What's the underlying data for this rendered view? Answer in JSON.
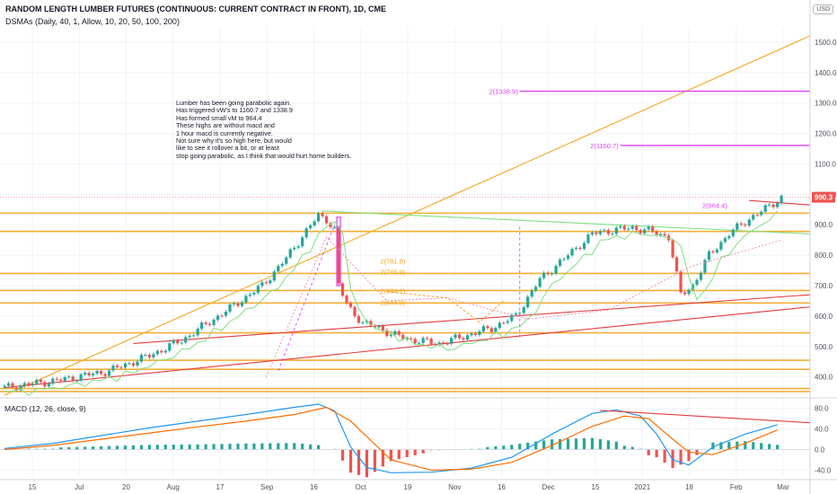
{
  "header": {
    "title": "RANDOM LENGTH LUMBER FUTURES (CONTINUOUS: CURRENT CONTRACT IN FRONT), 1D, CME",
    "subtitle": "DSMAs (Daily, 40, 1, Allow, 10, 20, 50, 100, 200)",
    "currency": "USD"
  },
  "note": "Lumber has been going parabolic again.\nHas triggered vW's to 1160.7 and 1338.9\nHas formed small vM to 964.4\nThese highs are without macd and\n1 hour macd is currently negative.\nNot sure why it's so high here, but would\nlike to see it rollover a bit, or at least\nstop going parabolic, as I think that would hurt home builders.",
  "macd_label": "MACD (12, 26, close, 9)",
  "colors": {
    "up": "#26a69a",
    "down": "#ef5350",
    "magenta": "#e040fb",
    "orange": "#f5a623",
    "green_line": "#7ee07e",
    "red_line": "#e23c3c",
    "macd": "#2196f3",
    "signal": "#ff6d00",
    "price_tag": "#ef5350"
  },
  "chart_data": [
    {
      "type": "candlestick",
      "title": "RANDOM LENGTH LUMBER FUTURES (CONTINUOUS: CURRENT CONTRACT IN FRONT), 1D, CME",
      "x_tick_labels": [
        "15",
        "Jul",
        "20",
        "Aug",
        "17",
        "Sep",
        "16",
        "Oct",
        "19",
        "Nov",
        "16",
        "Dec",
        "15",
        "2021",
        "18",
        "Feb",
        "Mar"
      ],
      "y_ticks": [
        400.0,
        500.0,
        600.0,
        700.0,
        800.0,
        900.0,
        1000.0,
        1100.0,
        1200.0,
        1300.0,
        1400.0,
        1500.0
      ],
      "ylim": [
        340,
        1550
      ],
      "last_price_label": "990.3",
      "close_path": [
        [
          0,
          365
        ],
        [
          14,
          390
        ],
        [
          26,
          420
        ],
        [
          36,
          470
        ],
        [
          44,
          520
        ],
        [
          56,
          625
        ],
        [
          64,
          700
        ],
        [
          70,
          790
        ],
        [
          75,
          880
        ],
        [
          78,
          930
        ],
        [
          80,
          918
        ],
        [
          82,
          885
        ],
        [
          83,
          700
        ],
        [
          85,
          640
        ],
        [
          89,
          575
        ],
        [
          93,
          563
        ],
        [
          96,
          540
        ],
        [
          102,
          520
        ],
        [
          108,
          510
        ],
        [
          112,
          525
        ],
        [
          117,
          545
        ],
        [
          121,
          560
        ],
        [
          127,
          600
        ],
        [
          133,
          720
        ],
        [
          140,
          800
        ],
        [
          146,
          870
        ],
        [
          150,
          880
        ],
        [
          156,
          890
        ],
        [
          160,
          880
        ],
        [
          165,
          860
        ],
        [
          168,
          670
        ],
        [
          171,
          700
        ],
        [
          175,
          800
        ],
        [
          180,
          870
        ],
        [
          185,
          920
        ],
        [
          190,
          960
        ],
        [
          193,
          990
        ]
      ],
      "annotations": [
        "2(1338.9)",
        "2(1160.7)",
        "2(964.4)",
        "2(781.8)",
        "2(745.9)",
        "2(684.1)",
        "2(644.8)"
      ],
      "levels": [
        {
          "label": "2(1338.9)",
          "value": 1338.9
        },
        {
          "label": "2(1160.7)",
          "value": 1160.7
        },
        {
          "label": "2(964.4)",
          "value": 964.4
        },
        {
          "label": "2(781.8)",
          "value": 781.8
        },
        {
          "label": "2(745.9)",
          "value": 745.9
        },
        {
          "label": "2(684.1)",
          "value": 684.1
        },
        {
          "label": "2(644.8)",
          "value": 644.8
        }
      ],
      "horizontal_lines": [
        938,
        878,
        740,
        684,
        643,
        545,
        455,
        425,
        362,
        352
      ],
      "trend_lines": [
        {
          "color": "#f5a623",
          "from": [
            0,
            340
          ],
          "to": [
            200,
            1520
          ]
        },
        {
          "color": "#7ee07e",
          "from": [
            79,
            945
          ],
          "to": [
            200,
            870
          ]
        },
        {
          "color": "#e23c3c",
          "from": [
            32,
            510
          ],
          "to": [
            200,
            670
          ]
        },
        {
          "color": "#e23c3c",
          "from": [
            0,
            365
          ],
          "to": [
            200,
            630
          ]
        },
        {
          "color": "#e23c3c",
          "from": [
            185,
            980
          ],
          "to": [
            200,
            965
          ]
        }
      ]
    },
    {
      "type": "macd",
      "title": "MACD (12, 26, close, 9)",
      "y_ticks": [
        80.0,
        40.0,
        0.0,
        -40.0
      ],
      "ylim": [
        -55,
        95
      ],
      "macd": [
        [
          0,
          2
        ],
        [
          12,
          12
        ],
        [
          24,
          27
        ],
        [
          36,
          42
        ],
        [
          48,
          55
        ],
        [
          60,
          68
        ],
        [
          72,
          82
        ],
        [
          78,
          88
        ],
        [
          82,
          75
        ],
        [
          86,
          5
        ],
        [
          90,
          -35
        ],
        [
          96,
          -45
        ],
        [
          106,
          -44
        ],
        [
          116,
          -36
        ],
        [
          126,
          -15
        ],
        [
          136,
          30
        ],
        [
          146,
          70
        ],
        [
          152,
          77
        ],
        [
          158,
          65
        ],
        [
          162,
          30
        ],
        [
          166,
          -20
        ],
        [
          170,
          -30
        ],
        [
          176,
          5
        ],
        [
          184,
          30
        ],
        [
          192,
          48
        ]
      ],
      "signal": [
        [
          0,
          0
        ],
        [
          12,
          8
        ],
        [
          24,
          20
        ],
        [
          36,
          32
        ],
        [
          48,
          44
        ],
        [
          60,
          55
        ],
        [
          72,
          68
        ],
        [
          80,
          82
        ],
        [
          86,
          55
        ],
        [
          90,
          25
        ],
        [
          96,
          -20
        ],
        [
          106,
          -40
        ],
        [
          116,
          -38
        ],
        [
          126,
          -25
        ],
        [
          136,
          8
        ],
        [
          146,
          45
        ],
        [
          154,
          65
        ],
        [
          160,
          60
        ],
        [
          166,
          20
        ],
        [
          170,
          -5
        ],
        [
          176,
          -10
        ],
        [
          184,
          12
        ],
        [
          192,
          38
        ]
      ],
      "trend_lines": [
        {
          "color": "#e23c3c",
          "from": [
            148,
            76
          ],
          "to": [
            200,
            52
          ]
        }
      ]
    }
  ]
}
